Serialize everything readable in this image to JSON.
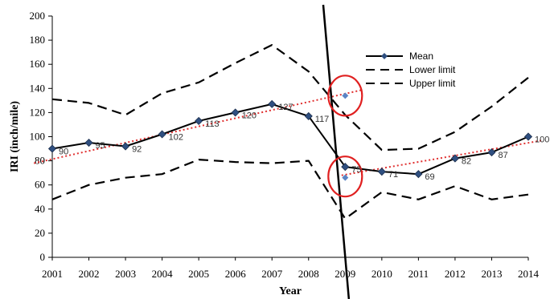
{
  "chart_data": {
    "type": "line",
    "x": [
      2001,
      2002,
      2003,
      2004,
      2005,
      2006,
      2007,
      2008,
      2009,
      2010,
      2011,
      2012,
      2013,
      2014
    ],
    "xlabel": "Year",
    "ylabel": "IRI (inch/mile)",
    "ylim": [
      0,
      200
    ],
    "yticks": [
      0,
      20,
      40,
      60,
      80,
      100,
      120,
      140,
      160,
      180,
      200
    ],
    "grid": false,
    "legend_position": "top-right",
    "series": [
      {
        "name": "Mean",
        "values": [
          90,
          95,
          92,
          102,
          113,
          120,
          127,
          117,
          75,
          71,
          69,
          82,
          87,
          100
        ],
        "labels": [
          "90",
          "95",
          "92",
          "102",
          "113",
          "120",
          "127",
          "117",
          "75",
          "71",
          "69",
          "82",
          "87",
          "100"
        ],
        "color": "#000000",
        "style": "solid",
        "marker": "diamond",
        "marker_color": "#2f4f80"
      },
      {
        "name": "Lower limit",
        "values": [
          48,
          60,
          66,
          69,
          81,
          79,
          78,
          80,
          32,
          54,
          48,
          59,
          48,
          52
        ],
        "color": "#000000",
        "style": "dashed"
      },
      {
        "name": "Upper limit",
        "values": [
          131,
          128,
          118,
          136,
          145,
          161,
          176,
          154,
          118,
          89,
          90,
          104,
          125,
          149
        ],
        "color": "#000000",
        "style": "dashed"
      }
    ],
    "trendlines": [
      {
        "x": [
          2000.5,
          2009.5
        ],
        "values": [
          78,
          139
        ],
        "color": "#e03030",
        "style": "dotted"
      },
      {
        "x": [
          2008.9,
          2014.4
        ],
        "values": [
          68,
          97
        ],
        "color": "#e03030",
        "style": "dotted"
      }
    ],
    "annotations": {
      "vertical_line": {
        "x": [
          2008.4,
          2009.1
        ],
        "color": "#000000"
      },
      "highlight_points": [
        {
          "x": 2009,
          "y": 134,
          "color": "#5b84c4"
        },
        {
          "x": 2009,
          "y": 66,
          "color": "#5b84c4"
        }
      ],
      "circles": [
        {
          "x": 2009,
          "y": 134,
          "color": "#e02020"
        },
        {
          "x": 2009,
          "y": 67,
          "color": "#e02020"
        }
      ]
    }
  }
}
